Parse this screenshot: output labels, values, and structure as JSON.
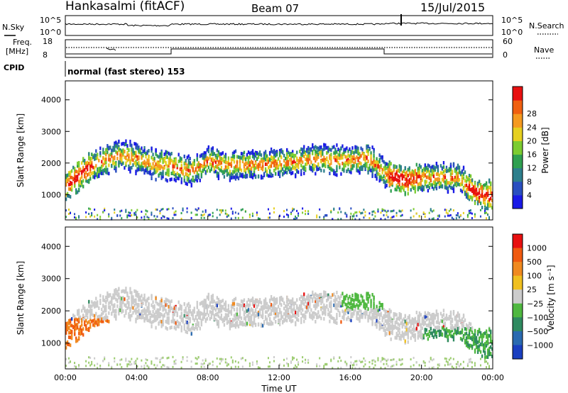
{
  "header": {
    "site": "Hankasalmi (fitACF)",
    "beam": "Beam 07",
    "date": "15/Jul/2015"
  },
  "status_panels": {
    "nsky_label": "N.Sky",
    "nsky_axis_labels": [
      "10^5",
      "10^0"
    ],
    "nsearch_label": "N.Search",
    "nsearch_axis_labels": [
      "10^5",
      "10^0"
    ],
    "freq_label_line1": "Freq.",
    "freq_label_line2": "[MHz]",
    "freq_axis_labels": [
      "18",
      "8"
    ],
    "nave_label": "Nave",
    "nave_axis_labels": [
      "60",
      "0"
    ],
    "cpid_label": "CPID",
    "cpid_text": "normal (fast stereo) 153"
  },
  "chart_data": [
    {
      "type": "heatmap",
      "name": "power-panel",
      "ylabel": "Slant Range [km]",
      "xlabel": "",
      "ylim": [
        200,
        4600
      ],
      "yticks": [
        1000,
        2000,
        3000,
        4000
      ],
      "xlim": [
        0,
        24
      ],
      "colorbar": {
        "label": "Power [dB]",
        "ticks": [
          "4",
          "8",
          "12",
          "16",
          "20",
          "24",
          "28"
        ],
        "colors": [
          "#1a1ae6",
          "#2a4fc0",
          "#2d7f8c",
          "#2fa050",
          "#7ccc30",
          "#e6d020",
          "#f59a20",
          "#f06010",
          "#e81010"
        ]
      },
      "echo_band_center_km": [
        1300,
        1800,
        2100,
        2300,
        2200,
        2000,
        1950,
        1800,
        2100,
        2000,
        2000,
        2000,
        2050,
        2100,
        2200,
        2150,
        2150,
        2200,
        1700,
        1500,
        1600,
        1600,
        1600,
        1100,
        1000
      ]
    },
    {
      "type": "heatmap",
      "name": "velocity-panel",
      "ylabel": "Slant Range [km]",
      "xlabel": "Time UT",
      "ylim": [
        200,
        4600
      ],
      "yticks": [
        1000,
        2000,
        3000,
        4000
      ],
      "xlim": [
        0,
        24
      ],
      "xticks": [
        "00:00",
        "04:00",
        "08:00",
        "12:00",
        "16:00",
        "20:00",
        "00:00"
      ],
      "colorbar": {
        "label": "Velocity [m s⁻¹]",
        "ticks": [
          "1000",
          "500",
          "100",
          "25",
          "−25",
          "−100",
          "−500",
          "−1000"
        ],
        "colors": [
          "#1a3fc0",
          "#2a6ab0",
          "#2f8a60",
          "#4fb840",
          "#cccccc",
          "#f0c020",
          "#f08a20",
          "#f05a10",
          "#e81010"
        ]
      }
    }
  ]
}
